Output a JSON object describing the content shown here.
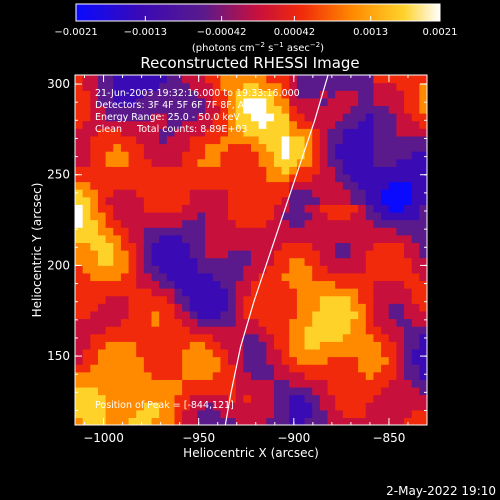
{
  "chart_data": {
    "type": "heatmap",
    "title": "Reconstructed RHESSI Image",
    "xlabel": "Heliocentric X (arcsec)",
    "ylabel": "Heliocentric Y (arcsec)",
    "xlim": [
      -1015,
      -830
    ],
    "ylim": [
      112,
      305
    ],
    "x_ticks": [
      -1000,
      -950,
      -900,
      -850
    ],
    "y_ticks": [
      150,
      200,
      250,
      300
    ],
    "x_tick_labels": [
      "−1000",
      "−950",
      "−900",
      "−850"
    ],
    "y_tick_labels": [
      "150",
      "200",
      "250",
      "300"
    ],
    "colorbar": {
      "range": [
        -0.0021,
        0.0021
      ],
      "ticks": [
        -0.0021,
        -0.0013,
        -0.00042,
        0.00042,
        0.0013,
        0.0021
      ],
      "tick_labels": [
        "−0.0021",
        "−0.0013",
        "−0.00042",
        "0.00042",
        "0.0013",
        "0.0021"
      ],
      "colors": [
        "#0a0aff",
        "#3a0ab5",
        "#5a1a8c",
        "#c8103c",
        "#f02a0a",
        "#ff8a00",
        "#ffd22a",
        "#ffffff"
      ]
    },
    "annotations": [
      "21-Jun-2003 19:32:16.000 to 19:33:16.000",
      "Detectors: 3F 4F 5F 6F 7F 8F, Att 0",
      "Energy Range: 25.0 - 50.0 keV",
      "Clean     Total counts: 8.89E+03"
    ],
    "peak_annotation": "Position of Peak = [-844,121]",
    "limb_curve": {
      "x": [
        -936,
        -933,
        -928,
        -921,
        -913,
        -905,
        -897,
        -889,
        -882
      ],
      "y": [
        112,
        130,
        155,
        180,
        205,
        230,
        255,
        280,
        305
      ]
    },
    "grid": false,
    "legend": "none"
  },
  "footer": {
    "timestamp": "2-May-2022 19:10"
  }
}
